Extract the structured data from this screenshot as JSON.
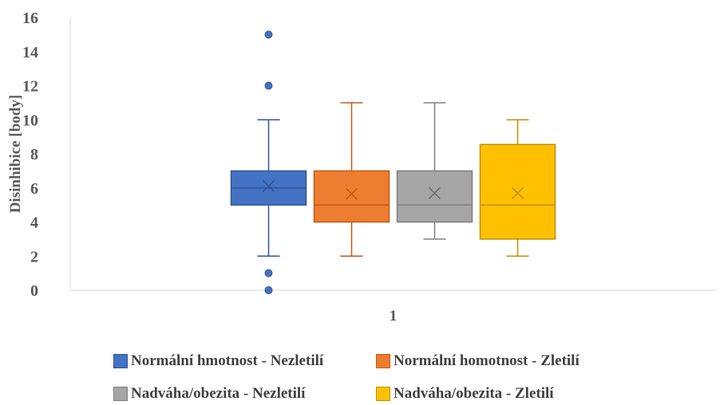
{
  "chart_data": {
    "type": "box",
    "title": "",
    "ylabel": "Disinhibice [body]",
    "xlabel": "",
    "ylim": [
      0,
      16
    ],
    "ytick_step": 2,
    "y_ticks": [
      "0",
      "2",
      "4",
      "6",
      "8",
      "10",
      "12",
      "14",
      "16"
    ],
    "categories": [
      "1"
    ],
    "grid": false,
    "legend": "bottom",
    "series": [
      {
        "name": "Normální hmotnost - Nezletilí",
        "color": "#4472C4",
        "min": 2,
        "q1": 5,
        "median": 6,
        "q3": 7,
        "max": 10,
        "mean": 6.1,
        "outliers": [
          15,
          12,
          1,
          0
        ]
      },
      {
        "name": "Normální homotnost - Zletilí",
        "color": "#ED7D31",
        "min": 2,
        "q1": 4,
        "median": 5,
        "q3": 7,
        "max": 11,
        "mean": 5.65,
        "outliers": []
      },
      {
        "name": "Nadváha/obezita - Nezletilí",
        "color": "#A5A5A5",
        "min": 3,
        "q1": 4,
        "median": 5,
        "q3": 7,
        "max": 11,
        "mean": 5.7,
        "outliers": []
      },
      {
        "name": "Nadváha/obezita - Zletilí",
        "color": "#FFC000",
        "min": 2,
        "q1": 3,
        "median": 5,
        "q3": 8.55,
        "max": 10,
        "mean": 5.7,
        "outliers": []
      }
    ]
  }
}
